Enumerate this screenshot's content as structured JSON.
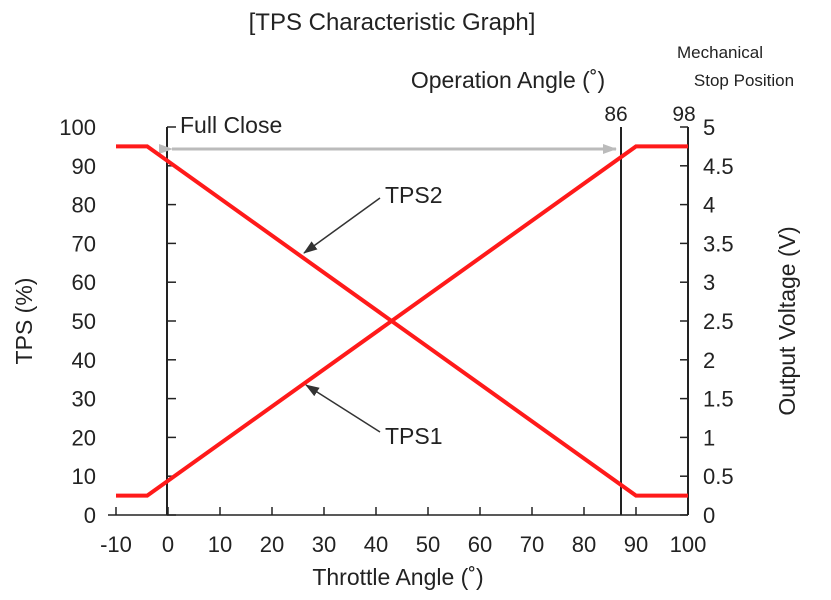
{
  "chart_data": {
    "type": "line",
    "title": "[TPS Characteristic Graph]",
    "xlabel": "Throttle Angle (˚)",
    "ylabel": "TPS (%)",
    "y2label": "Output Voltage (V)",
    "xlim": [
      -10,
      100
    ],
    "ylim": [
      0,
      100
    ],
    "y2lim": [
      0,
      5
    ],
    "x_ticks": [
      "-10",
      "0",
      "10",
      "20",
      "30",
      "40",
      "50",
      "60",
      "70",
      "80",
      "90",
      "100"
    ],
    "y_ticks": [
      "0",
      "10",
      "20",
      "30",
      "40",
      "50",
      "60",
      "70",
      "80",
      "90",
      "100"
    ],
    "y2_ticks": [
      "0",
      "0.5",
      "1",
      "1.5",
      "2",
      "2.5",
      "3",
      "3.5",
      "4",
      "4.5",
      "5"
    ],
    "series": [
      {
        "name": "TPS1",
        "x": [
          -10,
          -4,
          90,
          100
        ],
        "y": [
          5,
          5,
          95,
          95
        ]
      },
      {
        "name": "TPS2",
        "x": [
          -10,
          -4,
          90,
          100
        ],
        "y": [
          95,
          95,
          5,
          5
        ]
      }
    ],
    "annotations": {
      "full_close": "Full Close",
      "operation_angle": "Operation Angle (˚)",
      "operation_angle_value": "86",
      "mechanical_stop_line1": "Mechanical",
      "mechanical_stop_line2": "Stop Position",
      "mechanical_stop_value": "98"
    },
    "colors": {
      "series": "#ff1a1a",
      "axis": "#222222",
      "arrow": "#cccccc"
    },
    "grid": false
  }
}
